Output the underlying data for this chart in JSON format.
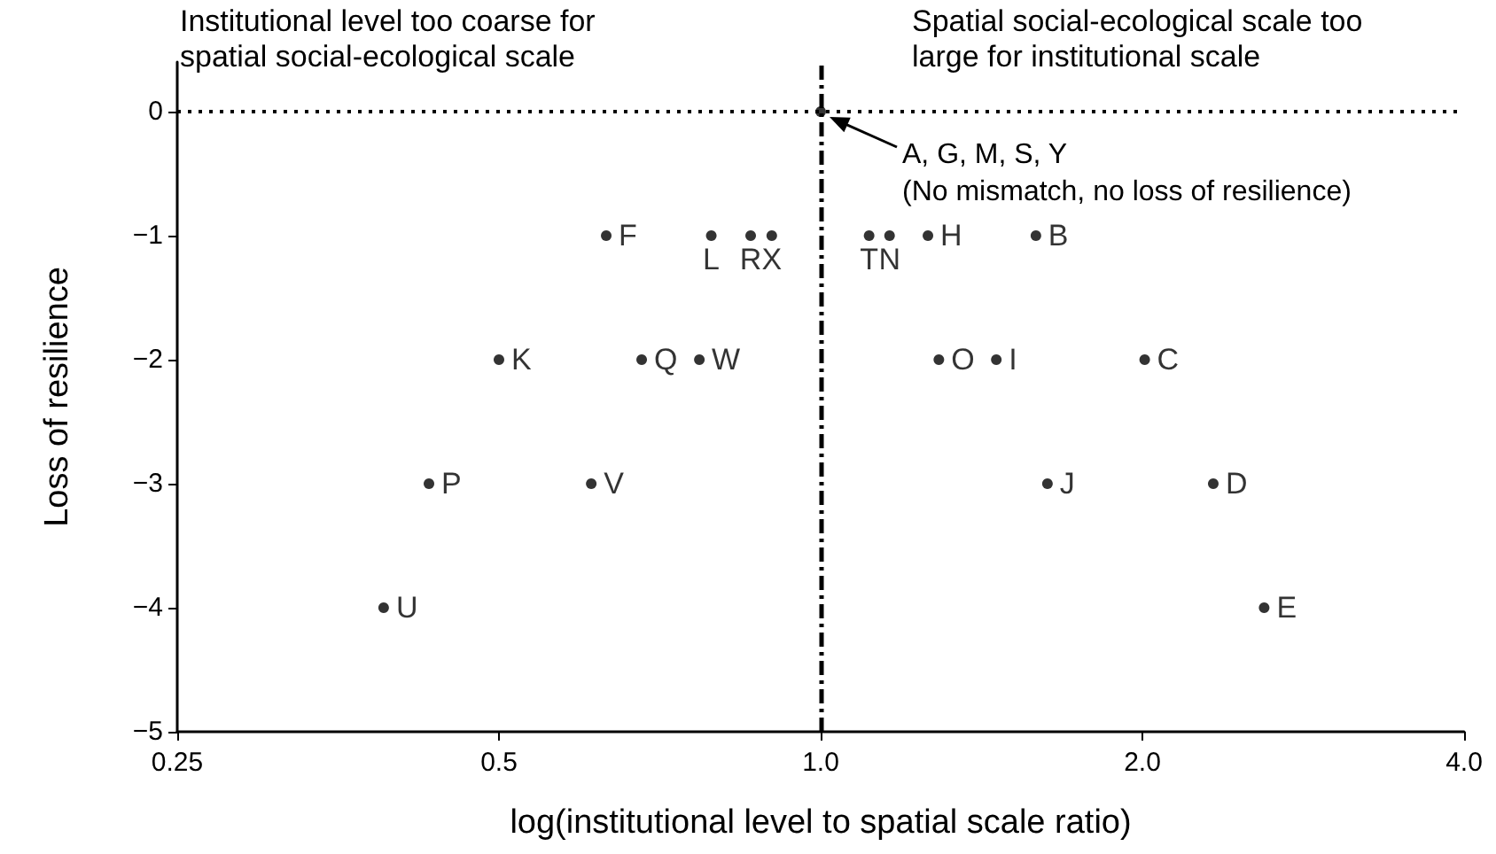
{
  "chart_data": {
    "type": "scatter",
    "xlabel": "log(institutional level to spatial scale ratio)",
    "ylabel": "Loss of resilience",
    "log": "x",
    "xlim": [
      0.25,
      4
    ],
    "xticks": [
      0.25,
      0.5,
      {
        "value": 1,
        "label": "1.0"
      },
      {
        "value": 2,
        "label": "2.0"
      },
      {
        "value": 4,
        "label": "4.0"
      }
    ],
    "ylim": [
      -5,
      0.4
    ],
    "yticks": [
      {
        "value": -5,
        "label": "−5"
      },
      {
        "value": -4,
        "label": "−4"
      },
      {
        "value": -3,
        "label": "−3"
      },
      {
        "value": -2,
        "label": "−2"
      },
      {
        "value": -1,
        "label": "−1"
      },
      0
    ],
    "grid": false,
    "marker": "circle",
    "series": [
      {
        "color": "#000000",
        "x": [
          0.63,
          0.79,
          0.86,
          0.9,
          1.11,
          1.16,
          1.26,
          1.59,
          0.5,
          0.68,
          0.77,
          1.29,
          1.46,
          2.01,
          0.43,
          0.61,
          1.63,
          2.33,
          0.39,
          2.6,
          1.0
        ],
        "values": [
          -1,
          -1,
          -1,
          -1,
          -1,
          -1,
          -1,
          -1,
          -2,
          -2,
          -2,
          -2,
          -2,
          -2,
          -3,
          -3,
          -3,
          -3,
          -4,
          -4,
          0
        ],
        "value_labels": [
          "F",
          "L",
          "R",
          "X",
          "T",
          "N",
          "H",
          "B",
          "K",
          "Q",
          "W",
          "O",
          "I",
          "C",
          "P",
          "V",
          "J",
          "D",
          "U",
          "E",
          null
        ]
      }
    ],
    "ref_lines": [
      {
        "axis": "x",
        "value": 1,
        "line_style": "dashed",
        "color": "#000000"
      },
      {
        "axis": "y",
        "value": 0,
        "line_style": "dotted",
        "color": "#000000"
      }
    ],
    "annotations": [
      "Institutional level too coarse for spatial social-ecological scale",
      "Spatial social-ecological scale too large for institutional scale",
      "A, G, M, S, Y\n(No mismatch, no loss of resilience)"
    ]
  }
}
